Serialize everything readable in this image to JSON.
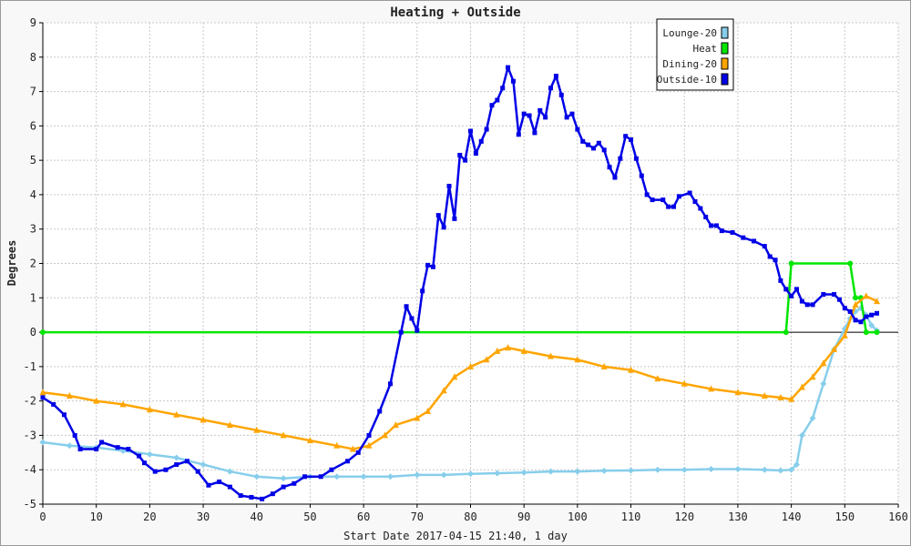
{
  "chart_data": {
    "type": "line",
    "title": "Heating + Outside",
    "xlabel": "Start Date 2017-04-15 21:40, 1 day",
    "ylabel": "Degrees",
    "xlim": [
      0,
      160
    ],
    "ylim": [
      -5,
      9
    ],
    "x_ticks": [
      "0",
      "10",
      "20",
      "30",
      "40",
      "50",
      "60",
      "70",
      "80",
      "90",
      "100",
      "110",
      "120",
      "130",
      "140",
      "150",
      "160"
    ],
    "y_ticks": [
      "-5",
      "-4",
      "-3",
      "-2",
      "-1",
      "0",
      "1",
      "2",
      "3",
      "4",
      "5",
      "6",
      "7",
      "8",
      "9"
    ],
    "grid": true,
    "legend_position": "top-right",
    "series": [
      {
        "name": "Lounge-20",
        "color": "#87ceeb",
        "marker": "diamond",
        "points": [
          [
            0,
            -3.2
          ],
          [
            5,
            -3.3
          ],
          [
            10,
            -3.35
          ],
          [
            15,
            -3.45
          ],
          [
            20,
            -3.55
          ],
          [
            25,
            -3.65
          ],
          [
            30,
            -3.85
          ],
          [
            35,
            -4.05
          ],
          [
            40,
            -4.2
          ],
          [
            45,
            -4.25
          ],
          [
            50,
            -4.2
          ],
          [
            55,
            -4.2
          ],
          [
            60,
            -4.2
          ],
          [
            65,
            -4.2
          ],
          [
            70,
            -4.15
          ],
          [
            75,
            -4.15
          ],
          [
            80,
            -4.12
          ],
          [
            85,
            -4.1
          ],
          [
            90,
            -4.08
          ],
          [
            95,
            -4.05
          ],
          [
            100,
            -4.05
          ],
          [
            105,
            -4.03
          ],
          [
            110,
            -4.02
          ],
          [
            115,
            -4.0
          ],
          [
            120,
            -4.0
          ],
          [
            125,
            -3.98
          ],
          [
            130,
            -3.98
          ],
          [
            135,
            -4.0
          ],
          [
            138,
            -4.02
          ],
          [
            140,
            -4.0
          ],
          [
            141,
            -3.85
          ],
          [
            142,
            -3.0
          ],
          [
            144,
            -2.5
          ],
          [
            146,
            -1.5
          ],
          [
            148,
            -0.5
          ],
          [
            150,
            0.1
          ],
          [
            151,
            0.4
          ],
          [
            152,
            0.6
          ],
          [
            153,
            0.7
          ],
          [
            154,
            0.5
          ],
          [
            155,
            0.2
          ],
          [
            156,
            0.05
          ]
        ]
      },
      {
        "name": "Heat",
        "color": "#00e600",
        "marker": "circle",
        "points": [
          [
            0,
            0
          ],
          [
            139,
            0
          ],
          [
            140,
            2
          ],
          [
            151,
            2
          ],
          [
            152,
            1
          ],
          [
            153,
            1
          ],
          [
            154,
            0
          ],
          [
            156,
            0
          ]
        ]
      },
      {
        "name": "Dining-20",
        "color": "#ffa500",
        "marker": "triangle",
        "points": [
          [
            0,
            -1.75
          ],
          [
            5,
            -1.85
          ],
          [
            10,
            -2.0
          ],
          [
            15,
            -2.1
          ],
          [
            20,
            -2.25
          ],
          [
            25,
            -2.4
          ],
          [
            30,
            -2.55
          ],
          [
            35,
            -2.7
          ],
          [
            40,
            -2.85
          ],
          [
            45,
            -3.0
          ],
          [
            50,
            -3.15
          ],
          [
            55,
            -3.3
          ],
          [
            58,
            -3.4
          ],
          [
            61,
            -3.3
          ],
          [
            64,
            -3.0
          ],
          [
            66,
            -2.7
          ],
          [
            70,
            -2.5
          ],
          [
            72,
            -2.3
          ],
          [
            75,
            -1.7
          ],
          [
            77,
            -1.3
          ],
          [
            80,
            -1.0
          ],
          [
            83,
            -0.8
          ],
          [
            85,
            -0.55
          ],
          [
            87,
            -0.45
          ],
          [
            90,
            -0.55
          ],
          [
            95,
            -0.7
          ],
          [
            100,
            -0.8
          ],
          [
            105,
            -1.0
          ],
          [
            110,
            -1.1
          ],
          [
            115,
            -1.35
          ],
          [
            120,
            -1.5
          ],
          [
            125,
            -1.65
          ],
          [
            130,
            -1.75
          ],
          [
            135,
            -1.85
          ],
          [
            138,
            -1.9
          ],
          [
            140,
            -1.95
          ],
          [
            142,
            -1.6
          ],
          [
            144,
            -1.3
          ],
          [
            146,
            -0.9
          ],
          [
            148,
            -0.5
          ],
          [
            150,
            -0.1
          ],
          [
            152,
            0.8
          ],
          [
            154,
            1.05
          ],
          [
            156,
            0.9
          ]
        ]
      },
      {
        "name": "Outside-10",
        "color": "#0000e6",
        "marker": "square",
        "points": [
          [
            0,
            -1.9
          ],
          [
            2,
            -2.1
          ],
          [
            4,
            -2.4
          ],
          [
            6,
            -3.0
          ],
          [
            7,
            -3.4
          ],
          [
            10,
            -3.4
          ],
          [
            11,
            -3.2
          ],
          [
            14,
            -3.35
          ],
          [
            16,
            -3.4
          ],
          [
            18,
            -3.6
          ],
          [
            19,
            -3.8
          ],
          [
            21,
            -4.05
          ],
          [
            23,
            -4.0
          ],
          [
            25,
            -3.85
          ],
          [
            27,
            -3.75
          ],
          [
            29,
            -4.05
          ],
          [
            31,
            -4.45
          ],
          [
            33,
            -4.35
          ],
          [
            35,
            -4.5
          ],
          [
            37,
            -4.75
          ],
          [
            39,
            -4.8
          ],
          [
            41,
            -4.85
          ],
          [
            43,
            -4.7
          ],
          [
            45,
            -4.5
          ],
          [
            47,
            -4.4
          ],
          [
            49,
            -4.2
          ],
          [
            52,
            -4.2
          ],
          [
            54,
            -4.0
          ],
          [
            57,
            -3.75
          ],
          [
            59,
            -3.5
          ],
          [
            61,
            -3.0
          ],
          [
            63,
            -2.3
          ],
          [
            65,
            -1.5
          ],
          [
            67,
            0.0
          ],
          [
            68,
            0.75
          ],
          [
            69,
            0.4
          ],
          [
            70,
            0.05
          ],
          [
            71,
            1.2
          ],
          [
            72,
            1.95
          ],
          [
            73,
            1.9
          ],
          [
            74,
            3.4
          ],
          [
            75,
            3.05
          ],
          [
            76,
            4.25
          ],
          [
            77,
            3.3
          ],
          [
            78,
            5.15
          ],
          [
            79,
            5.0
          ],
          [
            80,
            5.85
          ],
          [
            81,
            5.2
          ],
          [
            82,
            5.55
          ],
          [
            83,
            5.9
          ],
          [
            84,
            6.6
          ],
          [
            85,
            6.75
          ],
          [
            86,
            7.1
          ],
          [
            87,
            7.7
          ],
          [
            88,
            7.3
          ],
          [
            89,
            5.75
          ],
          [
            90,
            6.35
          ],
          [
            91,
            6.3
          ],
          [
            92,
            5.8
          ],
          [
            93,
            6.45
          ],
          [
            94,
            6.25
          ],
          [
            95,
            7.1
          ],
          [
            96,
            7.45
          ],
          [
            97,
            6.9
          ],
          [
            98,
            6.25
          ],
          [
            99,
            6.35
          ],
          [
            100,
            5.9
          ],
          [
            101,
            5.55
          ],
          [
            102,
            5.45
          ],
          [
            103,
            5.35
          ],
          [
            104,
            5.5
          ],
          [
            105,
            5.3
          ],
          [
            106,
            4.8
          ],
          [
            107,
            4.5
          ],
          [
            108,
            5.05
          ],
          [
            109,
            5.7
          ],
          [
            110,
            5.6
          ],
          [
            111,
            5.05
          ],
          [
            112,
            4.55
          ],
          [
            113,
            4.0
          ],
          [
            114,
            3.85
          ],
          [
            116,
            3.85
          ],
          [
            117,
            3.65
          ],
          [
            118,
            3.65
          ],
          [
            119,
            3.95
          ],
          [
            121,
            4.05
          ],
          [
            122,
            3.8
          ],
          [
            123,
            3.6
          ],
          [
            124,
            3.35
          ],
          [
            125,
            3.1
          ],
          [
            126,
            3.1
          ],
          [
            127,
            2.95
          ],
          [
            129,
            2.9
          ],
          [
            131,
            2.75
          ],
          [
            133,
            2.65
          ],
          [
            135,
            2.5
          ],
          [
            136,
            2.2
          ],
          [
            137,
            2.1
          ],
          [
            138,
            1.5
          ],
          [
            139,
            1.25
          ],
          [
            140,
            1.05
          ],
          [
            141,
            1.25
          ],
          [
            142,
            0.9
          ],
          [
            143,
            0.8
          ],
          [
            144,
            0.8
          ],
          [
            146,
            1.1
          ],
          [
            148,
            1.1
          ],
          [
            149,
            0.95
          ],
          [
            150,
            0.7
          ],
          [
            151,
            0.6
          ],
          [
            152,
            0.35
          ],
          [
            153,
            0.3
          ],
          [
            154,
            0.45
          ],
          [
            155,
            0.5
          ],
          [
            156,
            0.55
          ]
        ]
      }
    ]
  }
}
